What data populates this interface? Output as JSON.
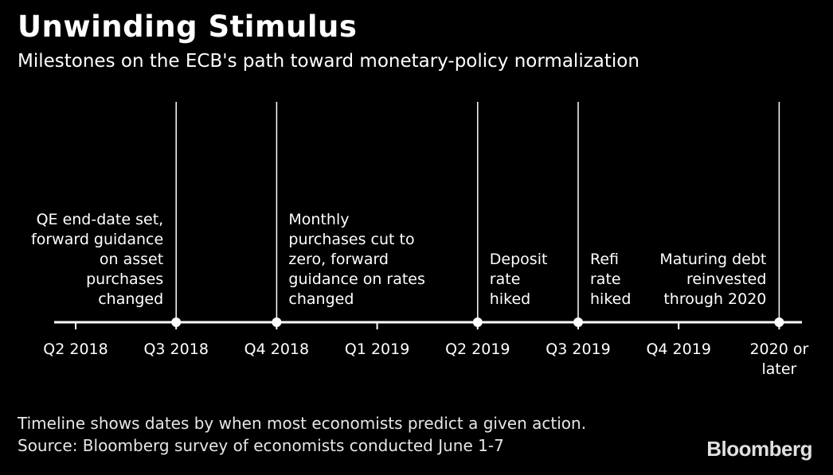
{
  "title": "Unwinding Stimulus",
  "subtitle": "Milestones on the ECB's path toward monetary-policy normalization",
  "footnote_1": "Timeline shows dates by when most economists predict a given action.",
  "footnote_2": "Source: Bloomberg survey of economists conducted June 1-7",
  "brand": "Bloomberg",
  "colors": {
    "background": "#000000",
    "line": "#ffffff",
    "text": "#ffffff"
  },
  "chart_data": {
    "type": "timeline",
    "categories": [
      "Q2 2018",
      "Q3 2018",
      "Q4 2018",
      "Q1 2019",
      "Q2 2019",
      "Q3 2019",
      "Q4 2019",
      "2020 or later"
    ],
    "category_lines": [
      [
        "Q2 2018"
      ],
      [
        "Q3 2018"
      ],
      [
        "Q4 2018"
      ],
      [
        "Q1 2019"
      ],
      [
        "Q2 2019"
      ],
      [
        "Q3 2019"
      ],
      [
        "Q4 2019"
      ],
      [
        "2020 or",
        "later"
      ]
    ],
    "events": [
      {
        "category": "Q3 2018",
        "align": "left-of-marker",
        "lines": [
          "QE end-date set,",
          "forward guidance",
          "on asset",
          "purchases",
          "changed"
        ]
      },
      {
        "category": "Q4 2018",
        "align": "right-of-marker",
        "lines": [
          "Monthly",
          "purchases cut to",
          "zero, forward",
          "guidance on rates",
          "changed"
        ]
      },
      {
        "category": "Q2 2019",
        "align": "right-of-marker",
        "lines": [
          "Deposit",
          "rate",
          "hiked"
        ]
      },
      {
        "category": "Q3 2019",
        "align": "right-of-marker",
        "lines": [
          "Refi",
          "rate",
          "hiked"
        ]
      },
      {
        "category": "2020 or later",
        "align": "left-of-marker",
        "lines": [
          "Maturing debt",
          "reinvested",
          "through 2020"
        ]
      }
    ]
  }
}
